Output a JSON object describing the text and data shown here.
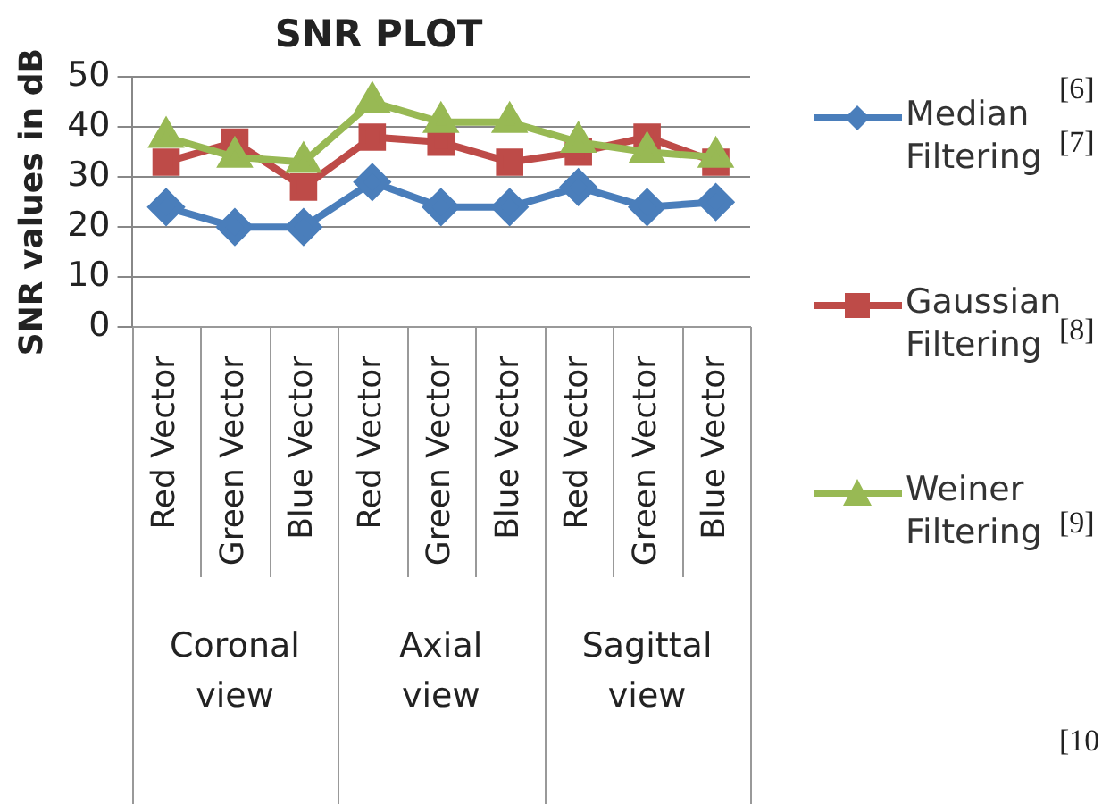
{
  "chart_data": {
    "type": "line",
    "title": "SNR PLOT",
    "ylabel": "SNR values in dB",
    "categories": [
      "Red Vector",
      "Green Vector",
      "Blue Vector",
      "Red Vector",
      "Green Vector",
      "Blue Vector",
      "Red Vector",
      "Green Vector",
      "Blue Vector"
    ],
    "annotations": [
      "Coronal view",
      "Axial view",
      "Sagittal view",
      "[6]",
      "[7]",
      "[8]",
      "[9]",
      "[10"
    ],
    "series": [
      {
        "name": "Median Filtering",
        "color": "#4a7ebb",
        "marker": "diamond",
        "values": [
          24,
          20,
          20,
          29,
          24,
          24,
          28,
          24,
          25
        ]
      },
      {
        "name": "Gaussian Filtering",
        "color": "#be4b48",
        "marker": "square",
        "values": [
          33,
          37,
          28,
          38,
          37,
          33,
          35,
          38,
          33
        ]
      },
      {
        "name": "Weiner Filtering",
        "color": "#98b954",
        "marker": "triangle",
        "values": [
          38,
          34,
          33,
          45,
          41,
          41,
          37,
          35,
          34
        ]
      }
    ],
    "ylim": [
      0,
      50
    ],
    "yticks": [
      0,
      10,
      20,
      30,
      40,
      50
    ],
    "grid": "y",
    "legend": "right"
  }
}
